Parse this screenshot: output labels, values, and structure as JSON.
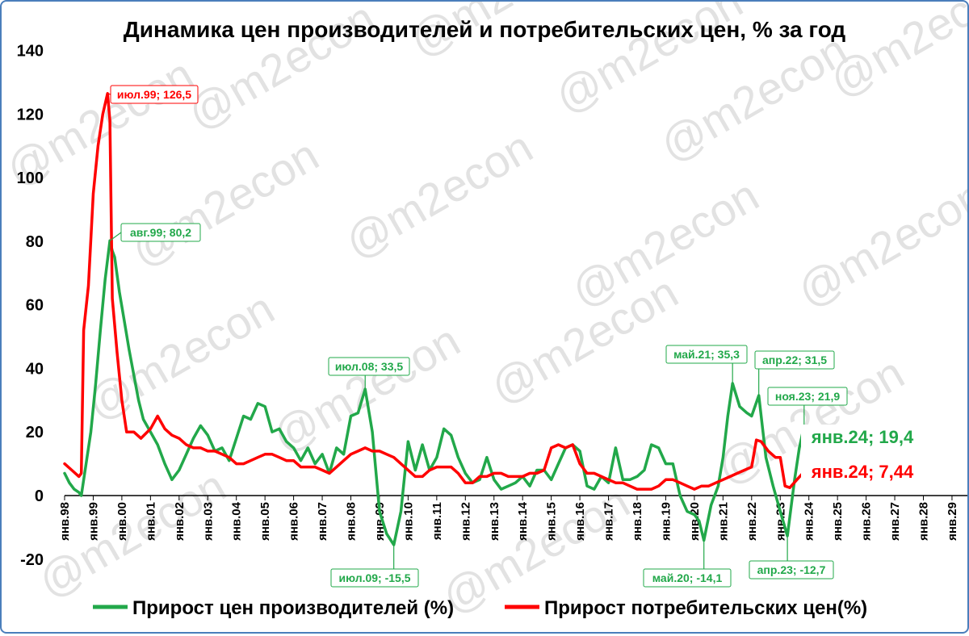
{
  "chart_data": {
    "type": "line",
    "title": "Динамика цен производителей и потребительских цен, % за год",
    "ylim": [
      -20,
      140
    ],
    "yticks": [
      -20,
      0,
      20,
      40,
      60,
      80,
      100,
      120,
      140
    ],
    "xlim": [
      "1998-01",
      "2030-03"
    ],
    "xtick_labels": [
      "янв.98",
      "янв.99",
      "янв.00",
      "янв.01",
      "янв.02",
      "янв.03",
      "янв.04",
      "янв.05",
      "янв.06",
      "янв.07",
      "янв.08",
      "янв.09",
      "янв.10",
      "янв.11",
      "янв.12",
      "янв.13",
      "янв.14",
      "янв.15",
      "янв.16",
      "янв.17",
      "янв.18",
      "янв.19",
      "янв.20",
      "янв.21",
      "янв.22",
      "янв.23",
      "янв.24",
      "янв.25",
      "янв.26",
      "янв.27",
      "янв.28",
      "янв.29"
    ],
    "grid": false,
    "legend_position": "bottom",
    "watermark": "@m2econ",
    "series": [
      {
        "name": "Прирост цен производителей (%)",
        "color": "#22a84a",
        "points": [
          [
            "1998-01",
            7
          ],
          [
            "1998-03",
            4
          ],
          [
            "1998-05",
            2
          ],
          [
            "1998-07",
            1
          ],
          [
            "1998-08",
            0
          ],
          [
            "1998-10",
            10
          ],
          [
            "1998-12",
            20
          ],
          [
            "1999-02",
            35
          ],
          [
            "1999-04",
            52
          ],
          [
            "1999-06",
            68
          ],
          [
            "1999-08",
            80.2
          ],
          [
            "1999-09",
            77
          ],
          [
            "1999-10",
            75
          ],
          [
            "1999-12",
            64
          ],
          [
            "2000-02",
            55
          ],
          [
            "2000-04",
            46
          ],
          [
            "2000-06",
            38
          ],
          [
            "2000-08",
            30
          ],
          [
            "2000-10",
            24
          ],
          [
            "2001-01",
            20
          ],
          [
            "2001-04",
            16
          ],
          [
            "2001-07",
            10
          ],
          [
            "2001-10",
            5
          ],
          [
            "2002-01",
            8
          ],
          [
            "2002-04",
            13
          ],
          [
            "2002-07",
            18
          ],
          [
            "2002-10",
            22
          ],
          [
            "2003-01",
            19
          ],
          [
            "2003-04",
            14
          ],
          [
            "2003-07",
            15
          ],
          [
            "2003-10",
            11
          ],
          [
            "2004-01",
            18
          ],
          [
            "2004-04",
            25
          ],
          [
            "2004-07",
            24
          ],
          [
            "2004-10",
            29
          ],
          [
            "2005-01",
            28
          ],
          [
            "2005-04",
            20
          ],
          [
            "2005-07",
            21
          ],
          [
            "2005-10",
            17
          ],
          [
            "2006-01",
            15
          ],
          [
            "2006-04",
            11
          ],
          [
            "2006-07",
            15
          ],
          [
            "2006-10",
            10
          ],
          [
            "2007-01",
            13
          ],
          [
            "2007-04",
            7
          ],
          [
            "2007-07",
            15
          ],
          [
            "2007-10",
            13
          ],
          [
            "2008-01",
            25
          ],
          [
            "2008-04",
            26
          ],
          [
            "2008-07",
            33.5
          ],
          [
            "2008-10",
            20
          ],
          [
            "2009-01",
            -5
          ],
          [
            "2009-04",
            -12
          ],
          [
            "2009-07",
            -15.5
          ],
          [
            "2009-10",
            -5
          ],
          [
            "2010-01",
            17
          ],
          [
            "2010-04",
            8
          ],
          [
            "2010-07",
            16
          ],
          [
            "2010-10",
            8
          ],
          [
            "2011-01",
            12
          ],
          [
            "2011-04",
            21
          ],
          [
            "2011-07",
            19
          ],
          [
            "2011-10",
            12
          ],
          [
            "2012-01",
            7
          ],
          [
            "2012-04",
            4
          ],
          [
            "2012-07",
            5
          ],
          [
            "2012-10",
            12
          ],
          [
            "2013-01",
            5
          ],
          [
            "2013-04",
            2
          ],
          [
            "2013-07",
            3
          ],
          [
            "2013-10",
            4
          ],
          [
            "2014-01",
            6
          ],
          [
            "2014-04",
            3
          ],
          [
            "2014-07",
            8
          ],
          [
            "2014-10",
            8
          ],
          [
            "2015-01",
            5
          ],
          [
            "2015-04",
            10
          ],
          [
            "2015-07",
            15
          ],
          [
            "2015-10",
            16
          ],
          [
            "2016-01",
            14
          ],
          [
            "2016-04",
            3
          ],
          [
            "2016-07",
            2
          ],
          [
            "2016-10",
            6
          ],
          [
            "2017-01",
            4
          ],
          [
            "2017-04",
            15
          ],
          [
            "2017-07",
            5
          ],
          [
            "2017-10",
            5
          ],
          [
            "2018-01",
            6
          ],
          [
            "2018-04",
            8
          ],
          [
            "2018-07",
            16
          ],
          [
            "2018-10",
            15
          ],
          [
            "2019-01",
            10
          ],
          [
            "2019-04",
            10
          ],
          [
            "2019-07",
            0
          ],
          [
            "2019-10",
            -5
          ],
          [
            "2020-01",
            -6
          ],
          [
            "2020-03",
            -8
          ],
          [
            "2020-05",
            -14.1
          ],
          [
            "2020-08",
            -3
          ],
          [
            "2020-11",
            3
          ],
          [
            "2021-01",
            12
          ],
          [
            "2021-03",
            25
          ],
          [
            "2021-05",
            35.3
          ],
          [
            "2021-08",
            28
          ],
          [
            "2021-11",
            26
          ],
          [
            "2022-01",
            25
          ],
          [
            "2022-04",
            31.5
          ],
          [
            "2022-07",
            12
          ],
          [
            "2022-10",
            3
          ],
          [
            "2023-01",
            -5
          ],
          [
            "2023-04",
            -12.7
          ],
          [
            "2023-07",
            5
          ],
          [
            "2023-09",
            15
          ],
          [
            "2023-11",
            21.9
          ],
          [
            "2024-01",
            19.4
          ]
        ]
      },
      {
        "name": "Прирост потребительских цен(%)",
        "color": "#ff0000",
        "points": [
          [
            "1998-01",
            10
          ],
          [
            "1998-04",
            8
          ],
          [
            "1998-07",
            6
          ],
          [
            "1998-08",
            7
          ],
          [
            "1998-09",
            52
          ],
          [
            "1998-11",
            66
          ],
          [
            "1999-01",
            95
          ],
          [
            "1999-03",
            110
          ],
          [
            "1999-05",
            120
          ],
          [
            "1999-07",
            126.5
          ],
          [
            "1999-08",
            118
          ],
          [
            "1999-09",
            62
          ],
          [
            "1999-11",
            45
          ],
          [
            "2000-01",
            30
          ],
          [
            "2000-03",
            20
          ],
          [
            "2000-06",
            20
          ],
          [
            "2000-09",
            18
          ],
          [
            "2001-01",
            21
          ],
          [
            "2001-04",
            25
          ],
          [
            "2001-07",
            21
          ],
          [
            "2001-10",
            19
          ],
          [
            "2002-01",
            18
          ],
          [
            "2002-04",
            16
          ],
          [
            "2002-07",
            15
          ],
          [
            "2002-10",
            15
          ],
          [
            "2003-01",
            14
          ],
          [
            "2003-04",
            14
          ],
          [
            "2003-07",
            13
          ],
          [
            "2003-10",
            12
          ],
          [
            "2004-01",
            10
          ],
          [
            "2004-04",
            10
          ],
          [
            "2004-07",
            11
          ],
          [
            "2004-10",
            12
          ],
          [
            "2005-01",
            13
          ],
          [
            "2005-04",
            13
          ],
          [
            "2005-07",
            12
          ],
          [
            "2005-10",
            11
          ],
          [
            "2006-01",
            11
          ],
          [
            "2006-04",
            9
          ],
          [
            "2006-07",
            9
          ],
          [
            "2006-10",
            9
          ],
          [
            "2007-01",
            8
          ],
          [
            "2007-04",
            7
          ],
          [
            "2007-07",
            9
          ],
          [
            "2007-10",
            11
          ],
          [
            "2008-01",
            13
          ],
          [
            "2008-04",
            14
          ],
          [
            "2008-07",
            15
          ],
          [
            "2008-10",
            14
          ],
          [
            "2009-01",
            14
          ],
          [
            "2009-04",
            13
          ],
          [
            "2009-07",
            12
          ],
          [
            "2009-10",
            10
          ],
          [
            "2010-01",
            8
          ],
          [
            "2010-04",
            6
          ],
          [
            "2010-07",
            6
          ],
          [
            "2010-10",
            8
          ],
          [
            "2011-01",
            9
          ],
          [
            "2011-04",
            9
          ],
          [
            "2011-07",
            9
          ],
          [
            "2011-10",
            7
          ],
          [
            "2012-01",
            4
          ],
          [
            "2012-04",
            4
          ],
          [
            "2012-07",
            6
          ],
          [
            "2012-10",
            6
          ],
          [
            "2013-01",
            7
          ],
          [
            "2013-04",
            7
          ],
          [
            "2013-07",
            6
          ],
          [
            "2013-10",
            6
          ],
          [
            "2014-01",
            6
          ],
          [
            "2014-04",
            7
          ],
          [
            "2014-07",
            7
          ],
          [
            "2014-10",
            8
          ],
          [
            "2015-01",
            15
          ],
          [
            "2015-04",
            16
          ],
          [
            "2015-07",
            15
          ],
          [
            "2015-10",
            16
          ],
          [
            "2016-01",
            10
          ],
          [
            "2016-04",
            7
          ],
          [
            "2016-07",
            7
          ],
          [
            "2016-10",
            6
          ],
          [
            "2017-01",
            5
          ],
          [
            "2017-04",
            4
          ],
          [
            "2017-07",
            4
          ],
          [
            "2017-10",
            3
          ],
          [
            "2018-01",
            2
          ],
          [
            "2018-04",
            2
          ],
          [
            "2018-07",
            2
          ],
          [
            "2018-10",
            3
          ],
          [
            "2019-01",
            5
          ],
          [
            "2019-04",
            5
          ],
          [
            "2019-07",
            4
          ],
          [
            "2019-10",
            3
          ],
          [
            "2020-01",
            2
          ],
          [
            "2020-04",
            3
          ],
          [
            "2020-07",
            3
          ],
          [
            "2020-10",
            4
          ],
          [
            "2021-01",
            5
          ],
          [
            "2021-04",
            6
          ],
          [
            "2021-07",
            7
          ],
          [
            "2021-10",
            8
          ],
          [
            "2022-01",
            9
          ],
          [
            "2022-03",
            17.5
          ],
          [
            "2022-05",
            17
          ],
          [
            "2022-08",
            14
          ],
          [
            "2022-11",
            12
          ],
          [
            "2023-01",
            12
          ],
          [
            "2023-03",
            3
          ],
          [
            "2023-05",
            2.5
          ],
          [
            "2023-08",
            5
          ],
          [
            "2023-11",
            7.5
          ],
          [
            "2024-01",
            7.44
          ]
        ]
      }
    ],
    "annotations": [
      {
        "text": "июл.99; 126,5",
        "series": 1,
        "at": "1999-07",
        "value": 126.5,
        "color": "#ff0000"
      },
      {
        "text": "авг.99; 80,2",
        "series": 0,
        "at": "1999-08",
        "value": 80.2,
        "color": "#22a84a"
      },
      {
        "text": "июл.08; 33,5",
        "series": 0,
        "at": "2008-07",
        "value": 33.5,
        "color": "#22a84a"
      },
      {
        "text": "июл.09; -15,5",
        "series": 0,
        "at": "2009-07",
        "value": -15.5,
        "color": "#22a84a"
      },
      {
        "text": "май.21; 35,3",
        "series": 0,
        "at": "2021-05",
        "value": 35.3,
        "color": "#22a84a"
      },
      {
        "text": "апр.22; 31,5",
        "series": 0,
        "at": "2022-04",
        "value": 31.5,
        "color": "#22a84a"
      },
      {
        "text": "май.20; -14,1",
        "series": 0,
        "at": "2020-05",
        "value": -14.1,
        "color": "#22a84a"
      },
      {
        "text": "апр.23; -12,7",
        "series": 0,
        "at": "2023-04",
        "value": -12.7,
        "color": "#22a84a"
      },
      {
        "text": "ноя.23; 21,9",
        "series": 0,
        "at": "2023-11",
        "value": 21.9,
        "color": "#22a84a"
      },
      {
        "text": "янв.24; 19,4",
        "series": 0,
        "at": "2024-01",
        "value": 19.4,
        "color": "#22a84a",
        "emphasis": true
      },
      {
        "text": "янв.24; 7,44",
        "series": 1,
        "at": "2024-01",
        "value": 7.44,
        "color": "#ff0000",
        "emphasis": true
      }
    ]
  }
}
